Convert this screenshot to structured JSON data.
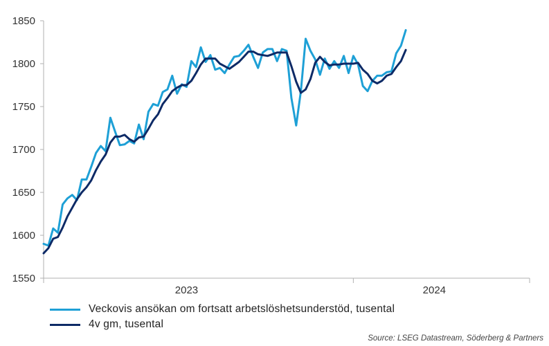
{
  "chart_data": {
    "type": "line",
    "x_start_label": "2022-08",
    "xlim_weeks": [
      0,
      102
    ],
    "ylim": [
      1550,
      1850
    ],
    "yticks": [
      1550,
      1600,
      1650,
      1700,
      1750,
      1800,
      1850
    ],
    "xticks": [
      {
        "label": "2023",
        "week": 30
      },
      {
        "label": "2024",
        "week": 82
      }
    ],
    "xdividers": [
      0,
      65,
      102
    ],
    "grid": false,
    "legend_position": "bottom-left",
    "series": [
      {
        "name": "Veckovis ansökan om fortsatt arbetslöshetsunderstöd, tusental",
        "color": "#1ea0d6",
        "values": [
          1590,
          1588,
          1608,
          1603,
          1636,
          1643,
          1647,
          1641,
          1665,
          1665,
          1680,
          1696,
          1704,
          1698,
          1737,
          1721,
          1705,
          1706,
          1710,
          1707,
          1729,
          1712,
          1744,
          1753,
          1751,
          1767,
          1770,
          1786,
          1765,
          1776,
          1773,
          1803,
          1796,
          1819,
          1802,
          1810,
          1793,
          1795,
          1789,
          1799,
          1808,
          1809,
          1815,
          1822,
          1808,
          1795,
          1813,
          1817,
          1817,
          1803,
          1817,
          1815,
          1760,
          1728,
          1768,
          1829,
          1815,
          1805,
          1787,
          1806,
          1794,
          1803,
          1795,
          1809,
          1789,
          1809,
          1799,
          1774,
          1768,
          1780,
          1786,
          1786,
          1790,
          1791,
          1812,
          1821,
          1839
        ]
      },
      {
        "name": "4v gm, tusental",
        "color": "#0d2a66",
        "values": [
          1579,
          1585,
          1596,
          1598,
          1609,
          1622,
          1632,
          1642,
          1650,
          1656,
          1664,
          1676,
          1686,
          1694,
          1708,
          1715,
          1715,
          1717,
          1712,
          1709,
          1714,
          1715,
          1724,
          1734,
          1741,
          1753,
          1760,
          1768,
          1772,
          1775,
          1775,
          1780,
          1789,
          1799,
          1806,
          1806,
          1806,
          1800,
          1797,
          1794,
          1798,
          1802,
          1808,
          1814,
          1814,
          1811,
          1810,
          1809,
          1811,
          1813,
          1813,
          1813,
          1797,
          1779,
          1766,
          1770,
          1782,
          1801,
          1808,
          1802,
          1798,
          1799,
          1799,
          1800,
          1800,
          1800,
          1801,
          1793,
          1788,
          1780,
          1777,
          1780,
          1786,
          1788,
          1796,
          1803,
          1816
        ]
      }
    ]
  },
  "source": "Source: LSEG Datastream, Söderberg & Partners"
}
